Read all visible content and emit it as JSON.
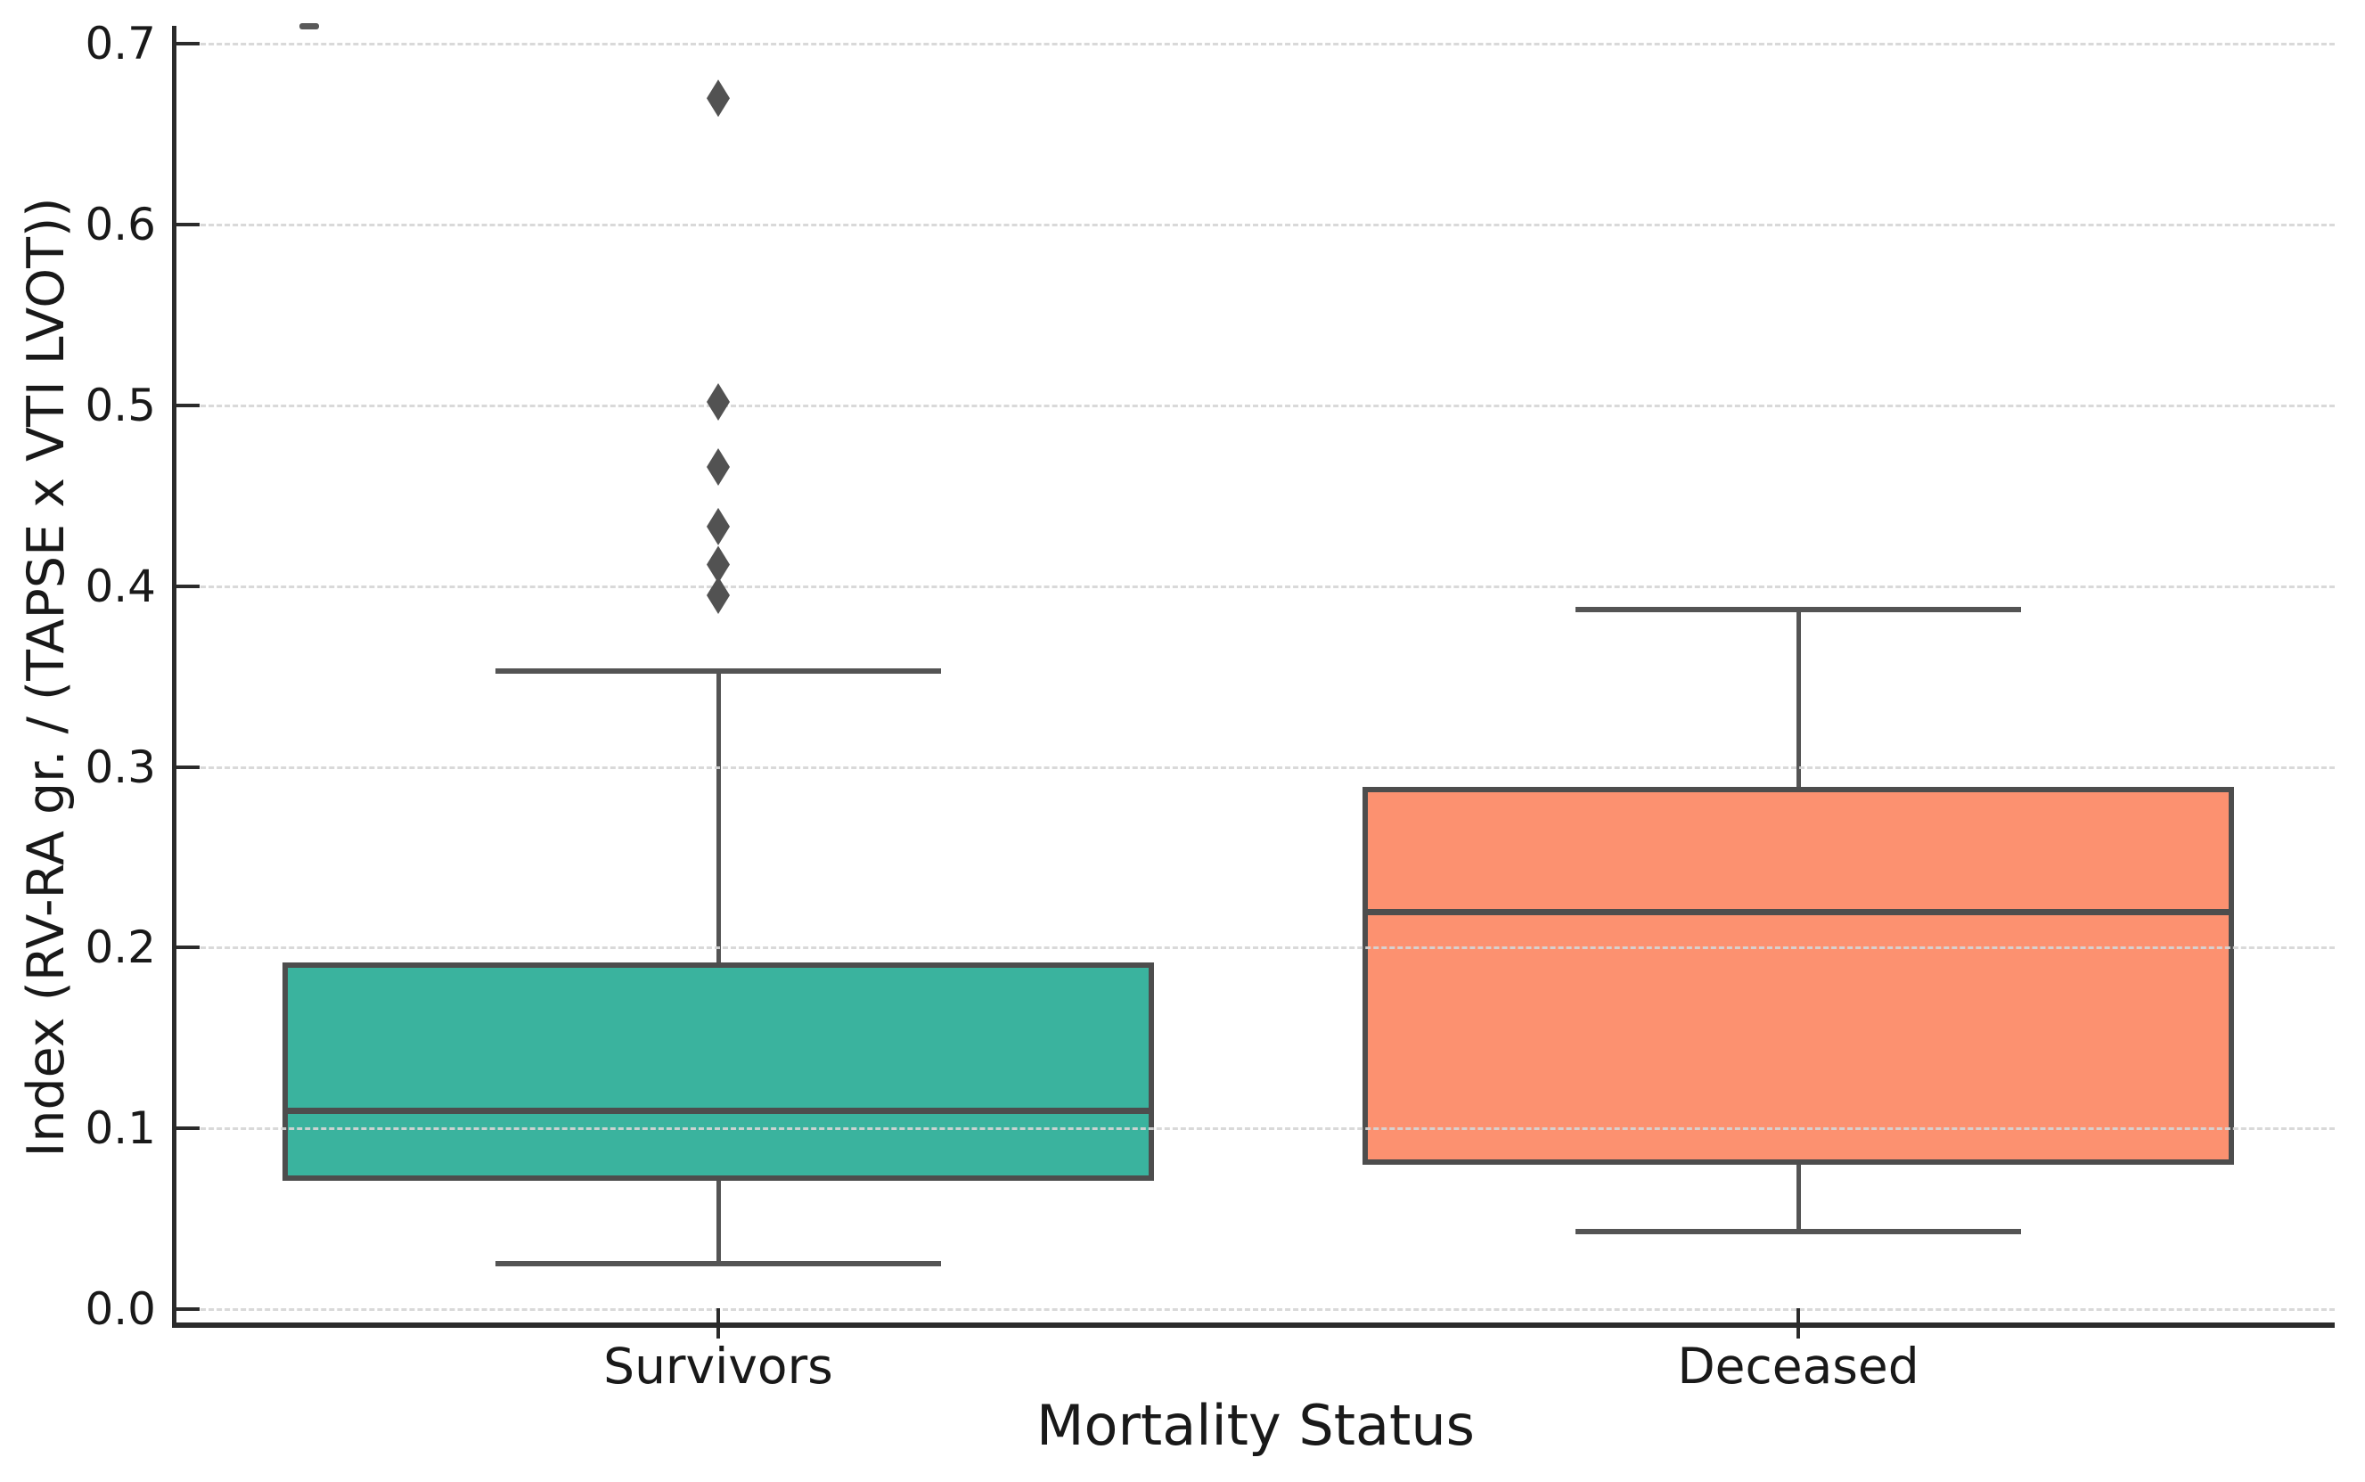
{
  "chart_data": {
    "type": "box",
    "title": "",
    "xlabel": "Mortality Status",
    "ylabel": "Index (RV-RA gr. / (TAPSE x VTI LVOT))",
    "categories": [
      "Survivors",
      "Deceased"
    ],
    "yticks": [
      0.0,
      0.1,
      0.2,
      0.3,
      0.4,
      0.5,
      0.6,
      0.7
    ],
    "ytick_labels": [
      "0.0",
      "0.1",
      "0.2",
      "0.3",
      "0.4",
      "0.5",
      "0.6",
      "0.7"
    ],
    "ylim": [
      -0.007,
      0.71
    ],
    "grid": "horizontal-dashed",
    "legend_position": "none",
    "series": [
      {
        "name": "Survivors",
        "fill_color": "#3AB39E",
        "whisker_low": 0.025,
        "q1": 0.071,
        "median": 0.11,
        "q3": 0.192,
        "whisker_high": 0.353,
        "outliers": [
          0.395,
          0.412,
          0.433,
          0.466,
          0.502,
          0.67
        ]
      },
      {
        "name": "Deceased",
        "fill_color": "#FC9170",
        "whisker_low": 0.043,
        "q1": 0.08,
        "median": 0.22,
        "q3": 0.289,
        "whisker_high": 0.387,
        "outliers": []
      }
    ]
  },
  "style": {
    "box_edge_color": "#4d4d4d",
    "whisker_color": "#545454",
    "outlier_color": "#525252",
    "grid_color": "#d6d6d6",
    "spine_color": "#2b2b2b",
    "text_color": "#191919",
    "background_color": "#ffffff"
  }
}
